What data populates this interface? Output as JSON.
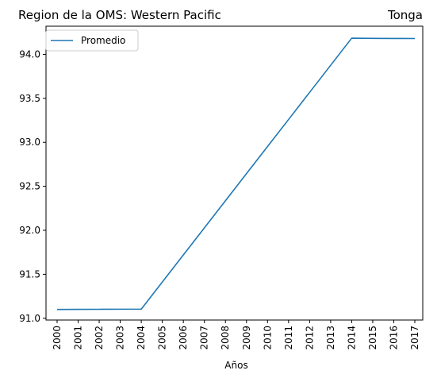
{
  "chart_data": {
    "type": "line",
    "title_left": "Region de la OMS: Western Pacific",
    "title_right": "Tonga",
    "xlabel": "Años",
    "ylabel": "",
    "categories": [
      "2000",
      "2001",
      "2002",
      "2003",
      "2004",
      "2005",
      "2006",
      "2007",
      "2008",
      "2009",
      "2010",
      "2011",
      "2012",
      "2013",
      "2014",
      "2015",
      "2016",
      "2017"
    ],
    "ylim": [
      90.98,
      94.32
    ],
    "yticks": [
      91.0,
      91.5,
      92.0,
      92.5,
      93.0,
      93.5,
      94.0
    ],
    "ytick_labels": [
      "91.0",
      "91.5",
      "92.0",
      "92.5",
      "93.0",
      "93.5",
      "94.0"
    ],
    "series": [
      {
        "name": "Promedio",
        "color": "#1f77b4",
        "values": [
          91.1,
          91.101,
          91.102,
          91.103,
          91.104,
          91.412,
          91.72,
          92.028,
          92.336,
          92.644,
          92.952,
          93.26,
          93.568,
          93.876,
          94.184,
          94.182,
          94.181,
          94.18
        ]
      }
    ],
    "legend_position": "top-left",
    "grid": false
  }
}
